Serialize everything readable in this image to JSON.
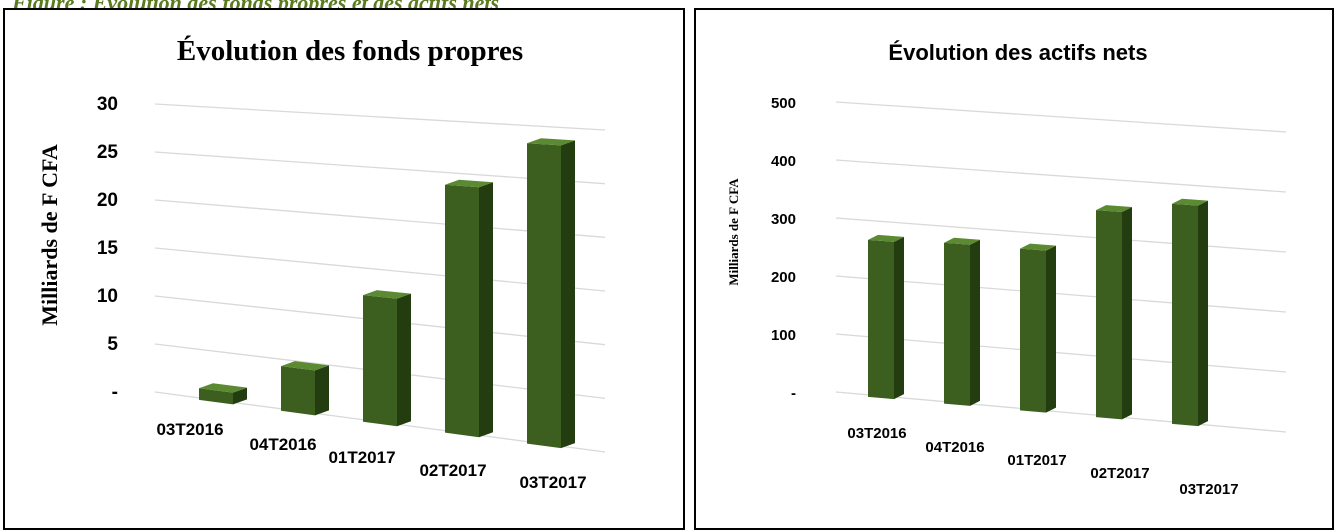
{
  "header_text": "Figure : Évolution des fonds propres et des actifs nets",
  "colors": {
    "bar_front": "#3c5f1f",
    "bar_side": "#233d10",
    "bar_top": "#5b8a32",
    "grid": "#d9d9d9"
  },
  "chart_data": [
    {
      "type": "bar",
      "title": "Évolution des fonds propres",
      "ylabel": "Milliards de F CFA",
      "categories": [
        "03T2016",
        "04T2016",
        "01T2017",
        "02T2017",
        "03T2017"
      ],
      "series": [
        {
          "values": [
            1.2,
            4.5,
            12.5,
            24,
            28.5
          ]
        }
      ],
      "ylim": [
        0,
        30
      ],
      "yticks": [
        "-",
        "5",
        "10",
        "15",
        "20",
        "25",
        "30"
      ],
      "grid": true,
      "style": "3d-column"
    },
    {
      "type": "bar",
      "title": "Évolution des actifs nets",
      "ylabel": "Milliards de F CFA",
      "categories": [
        "03T2016",
        "04T2016",
        "01T2017",
        "02T2017",
        "03T2017"
      ],
      "series": [
        {
          "values": [
            270,
            275,
            275,
            350,
            370
          ]
        }
      ],
      "ylim": [
        0,
        500
      ],
      "yticks": [
        "-",
        "100",
        "200",
        "300",
        "400",
        "500"
      ],
      "grid": true,
      "style": "3d-column"
    }
  ]
}
